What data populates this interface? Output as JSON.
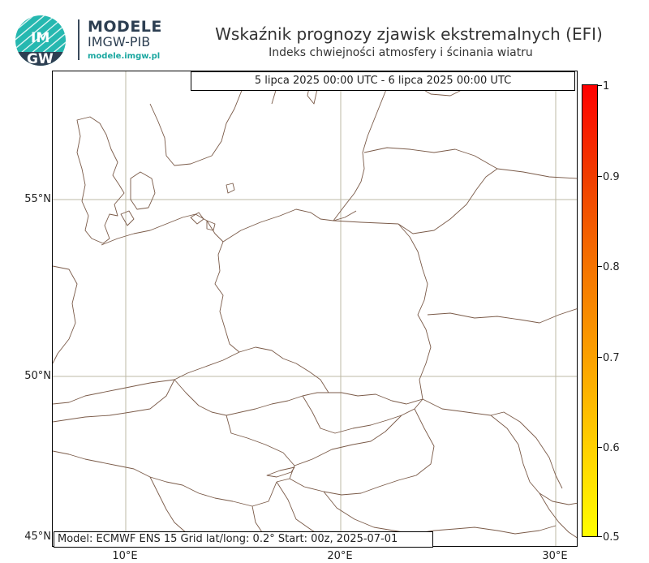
{
  "header": {
    "logo_text_top": "IM",
    "logo_text_bottom": "GW",
    "brand_name": "MODELE",
    "brand_org": "IMGW-PIB",
    "brand_url": "modele.imgw.pl",
    "title": "Wskaźnik prognozy zjawisk ekstremalnych (EFI)",
    "subtitle": "Indeks chwiejności atmosfery i ścinania wiatru"
  },
  "map": {
    "date_range": "5 lipca 2025 00:00 UTC - 6 lipca 2025 00:00 UTC",
    "info": "Model: ECMWF  ENS 15  Grid lat/long: 0.2°  Start: 00z, 2025-07-01",
    "lat_labels": [
      "55°N",
      "50°N",
      "45°N"
    ],
    "lon_labels": [
      "10°E",
      "20°E",
      "30°E"
    ],
    "border_color": "#7a5a48",
    "grid_color": "#bdb8a6"
  },
  "colorbar": {
    "ticks": [
      "1",
      "0.9",
      "0.8",
      "0.7",
      "0.6",
      "0.5"
    ],
    "colors": [
      "#ff0000",
      "#f03c00",
      "#f57300",
      "#fba000",
      "#ffd000",
      "#ffff00"
    ]
  }
}
